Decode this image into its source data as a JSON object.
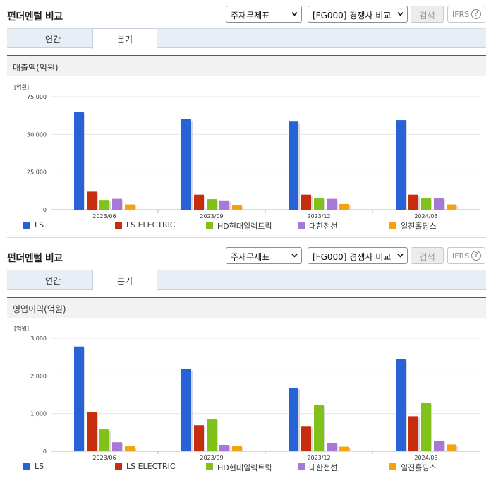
{
  "panels": [
    {
      "title": "펀더멘털 비교",
      "select_report": "주재무제표",
      "select_compare": "[FG000] 경쟁사 비교",
      "search_label": "검색",
      "ifrs_label": "IFRS",
      "help_glyph": "?",
      "tabs": [
        {
          "label": "연간",
          "active": false
        },
        {
          "label": "분기",
          "active": true
        }
      ],
      "metric_label": "매출액(억원)",
      "unit_label": "[억원]"
    },
    {
      "title": "펀더멘털 비교",
      "select_report": "주재무제표",
      "select_compare": "[FG000] 경쟁사 비교",
      "search_label": "검색",
      "ifrs_label": "IFRS",
      "help_glyph": "?",
      "tabs": [
        {
          "label": "연간",
          "active": false
        },
        {
          "label": "분기",
          "active": true
        }
      ],
      "metric_label": "영업이익(억원)",
      "unit_label": "[억원]"
    }
  ],
  "colors": {
    "LS": "#2563d6",
    "LS ELECTRIC": "#c62d0d",
    "HD현대일렉트릭": "#80c21a",
    "대한전선": "#a778d8",
    "일진홀딩스": "#f4a20e"
  },
  "chart_data": [
    {
      "type": "bar",
      "title": "매출액(억원)",
      "ylabel": "[억원]",
      "ylim": [
        0,
        75000
      ],
      "yticks": [
        "0",
        "25,000",
        "50,000",
        "75,000"
      ],
      "ytick_values": [
        0,
        25000,
        50000,
        75000
      ],
      "categories": [
        "2023/06",
        "2023/09",
        "2023/12",
        "2024/03"
      ],
      "series": [
        {
          "name": "LS",
          "values": [
            65000,
            60000,
            58500,
            59500
          ]
        },
        {
          "name": "LS ELECTRIC",
          "values": [
            12000,
            10000,
            10000,
            10000
          ]
        },
        {
          "name": "HD현대일렉트릭",
          "values": [
            6500,
            7000,
            7800,
            7800
          ]
        },
        {
          "name": "대한전선",
          "values": [
            7200,
            6200,
            7200,
            7800
          ]
        },
        {
          "name": "일진홀딩스",
          "values": [
            3500,
            3000,
            3800,
            3500
          ]
        }
      ]
    },
    {
      "type": "bar",
      "title": "영업이익(억원)",
      "ylabel": "[억원]",
      "ylim": [
        0,
        3000
      ],
      "yticks": [
        "0",
        "1,000",
        "2,000",
        "3,000"
      ],
      "ytick_values": [
        0,
        1000,
        2000,
        3000
      ],
      "categories": [
        "2023/06",
        "2023/09",
        "2023/12",
        "2024/03"
      ],
      "series": [
        {
          "name": "LS",
          "values": [
            2780,
            2180,
            1680,
            2440
          ]
        },
        {
          "name": "LS ELECTRIC",
          "values": [
            1040,
            690,
            670,
            930
          ]
        },
        {
          "name": "HD현대일렉트릭",
          "values": [
            580,
            860,
            1230,
            1290
          ]
        },
        {
          "name": "대한전선",
          "values": [
            240,
            170,
            210,
            280
          ]
        },
        {
          "name": "일진홀딩스",
          "values": [
            130,
            140,
            120,
            180
          ]
        }
      ]
    }
  ]
}
